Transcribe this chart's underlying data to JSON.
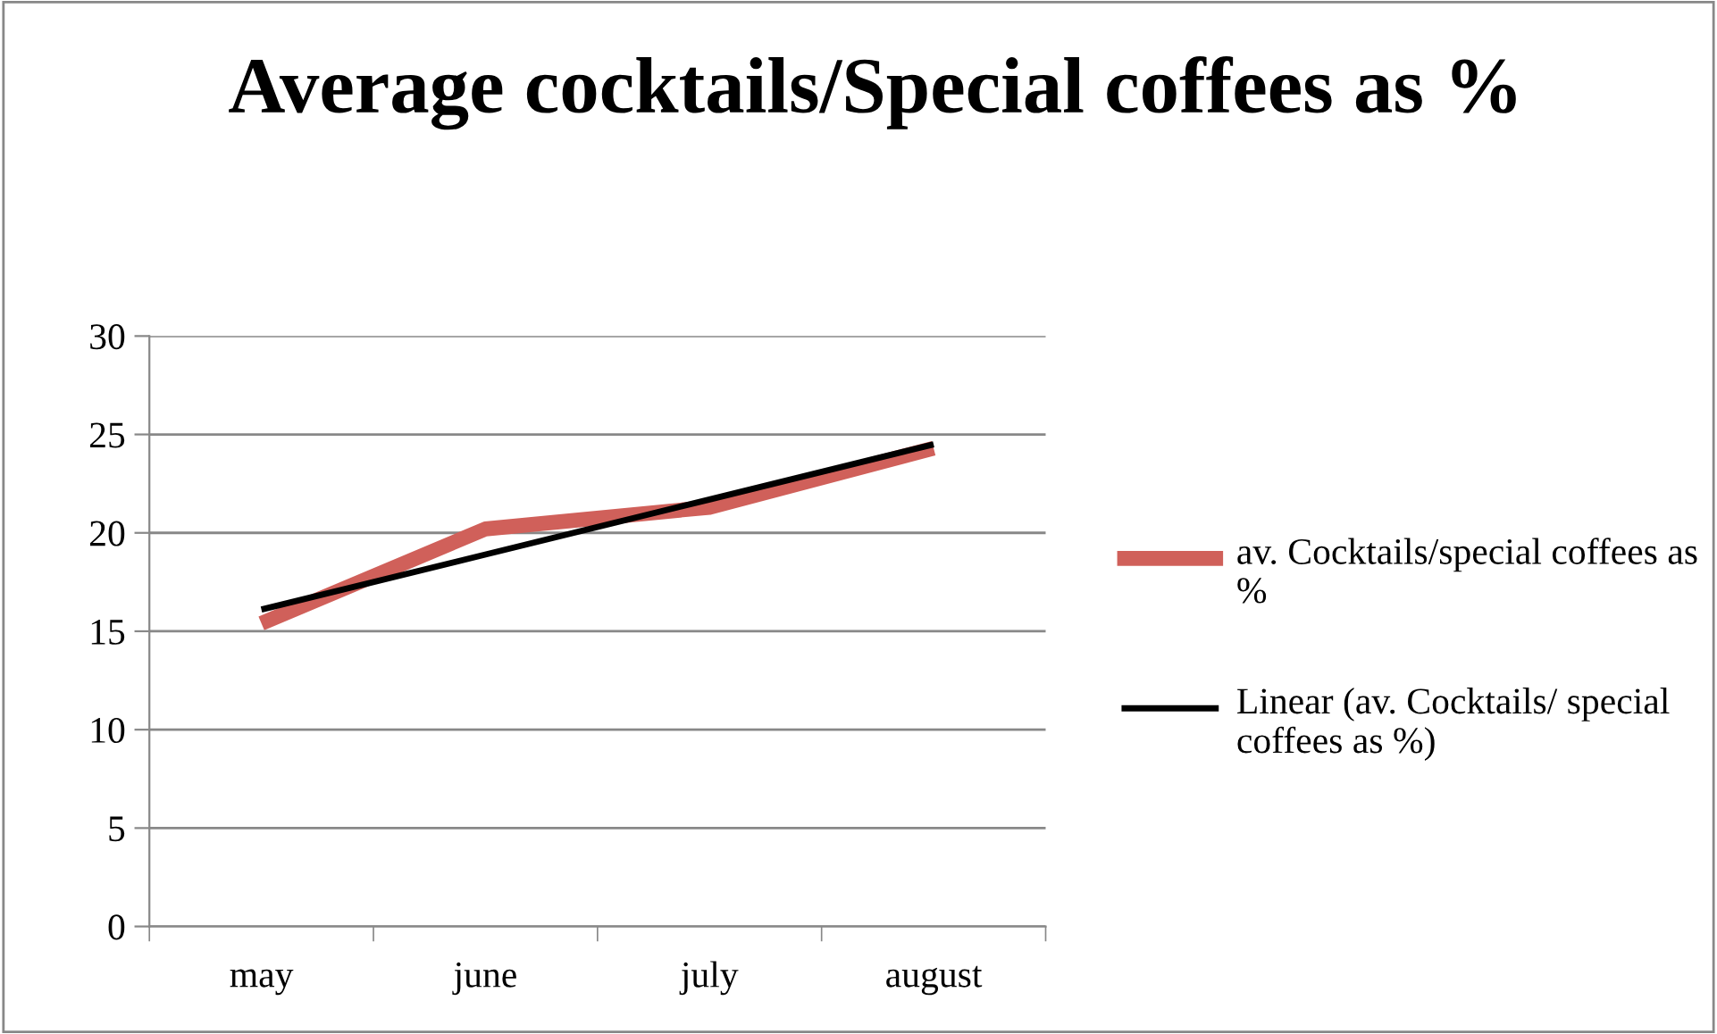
{
  "chart_data": {
    "type": "line",
    "title": "Average cocktails/Special coffees as %",
    "categories": [
      "may",
      "june",
      "july",
      "august"
    ],
    "series": [
      {
        "name": "av. Cocktails/special coffees as %",
        "color": "#d0605a",
        "values": [
          15.4,
          20.2,
          21.3,
          24.3
        ]
      },
      {
        "name": "Linear (av. Cocktails/ special coffees as %)",
        "color": "#000000",
        "values": [
          16.1,
          18.9,
          21.7,
          24.5
        ]
      }
    ],
    "ylim": [
      0,
      30
    ],
    "yticks": [
      0,
      5,
      10,
      15,
      20,
      25,
      30
    ],
    "grid": "y",
    "legend": "right",
    "marker": "none",
    "line_style": "solid"
  }
}
